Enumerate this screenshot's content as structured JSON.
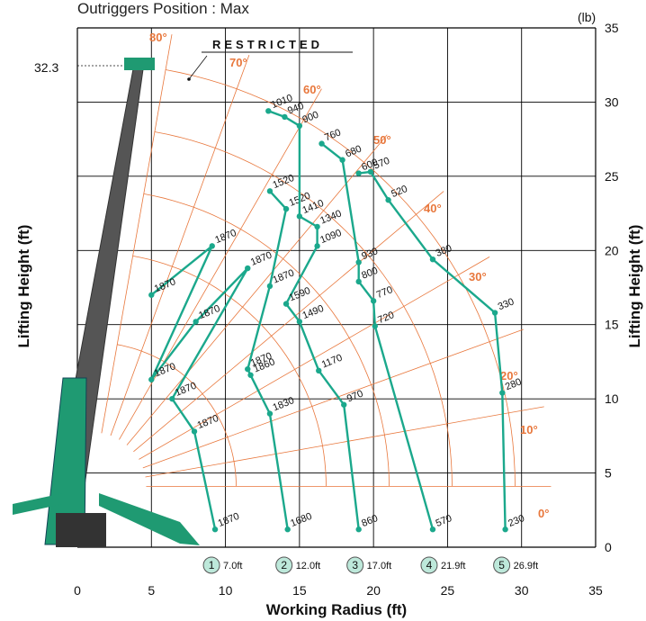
{
  "page_title": "Outriggers Position : Max",
  "restricted_label": "RESTRICTED",
  "max_height_label": "32.3",
  "unit_label": "(lb)",
  "colors": {
    "curve": "#1ba88c",
    "angle": "#e8773c",
    "grid": "#000000",
    "boom": "#555555",
    "machine": "#1f9a72"
  },
  "chart_data": {
    "type": "line",
    "xlabel": "Working Radius (ft)",
    "ylabel": "Lifting Height (ft)",
    "ylabel_right": "Lifting Height (ft)",
    "xlim": [
      0,
      35
    ],
    "ylim": [
      0,
      35
    ],
    "x_ticks": [
      "0",
      "5",
      "10",
      "15",
      "20",
      "25",
      "30",
      "35"
    ],
    "y_ticks": [
      "0",
      "5",
      "10",
      "15",
      "20",
      "25",
      "30",
      "35"
    ],
    "grid": true,
    "angle_labels": [
      "0°",
      "10°",
      "20°",
      "30°",
      "40°",
      "50°",
      "60°",
      "70°",
      "80°"
    ],
    "series": [
      {
        "name": "7.0ft",
        "index": "1",
        "points": [
          {
            "x": 9.3,
            "y": 1.2,
            "load": "1870"
          },
          {
            "x": 7.9,
            "y": 7.8,
            "load": "1870"
          },
          {
            "x": 6.4,
            "y": 10.0,
            "load": "1870"
          },
          {
            "x": 5.0,
            "y": 11.3,
            "load": "1870"
          },
          {
            "x": 5.0,
            "y": 17.0,
            "load": "1870"
          },
          {
            "x": 8.0,
            "y": 15.2,
            "load": "1870"
          },
          {
            "x": 9.1,
            "y": 20.3,
            "load": "1870"
          },
          {
            "x": 11.5,
            "y": 18.8,
            "load": "1870"
          }
        ]
      },
      {
        "name": "12.0ft",
        "index": "2",
        "points": [
          {
            "x": 14.2,
            "y": 1.2,
            "load": "1680"
          },
          {
            "x": 13.0,
            "y": 9.0,
            "load": "1830"
          },
          {
            "x": 11.7,
            "y": 11.6,
            "load": "1860"
          },
          {
            "x": 11.5,
            "y": 12.0,
            "load": "1870"
          },
          {
            "x": 13.0,
            "y": 17.6,
            "load": "1870"
          },
          {
            "x": 14.1,
            "y": 22.8,
            "load": "1520"
          },
          {
            "x": 13.0,
            "y": 24.0,
            "load": "1520"
          }
        ]
      },
      {
        "name": "17.0ft",
        "index": "3",
        "points": [
          {
            "x": 19.0,
            "y": 1.2,
            "load": "860"
          },
          {
            "x": 18.0,
            "y": 9.6,
            "load": "970"
          },
          {
            "x": 16.3,
            "y": 11.9,
            "load": "1170"
          },
          {
            "x": 15.0,
            "y": 15.2,
            "load": "1490"
          },
          {
            "x": 14.1,
            "y": 16.4,
            "load": "1590"
          },
          {
            "x": 15.0,
            "y": 22.3,
            "load": "1410"
          },
          {
            "x": 16.2,
            "y": 21.6,
            "load": "1340"
          },
          {
            "x": 16.2,
            "y": 20.3,
            "load": "1090"
          },
          {
            "x": 15.0,
            "y": 28.4,
            "load": "900"
          },
          {
            "x": 14.0,
            "y": 29.0,
            "load": "940"
          },
          {
            "x": 12.9,
            "y": 29.4,
            "load": "1010"
          }
        ]
      },
      {
        "name": "21.9ft",
        "index": "4",
        "points": [
          {
            "x": 24.0,
            "y": 1.2,
            "load": "570"
          },
          {
            "x": 20.1,
            "y": 14.9,
            "load": "720"
          },
          {
            "x": 20.0,
            "y": 16.6,
            "load": "770"
          },
          {
            "x": 19.0,
            "y": 17.9,
            "load": "800"
          },
          {
            "x": 19.0,
            "y": 19.2,
            "load": "930"
          },
          {
            "x": 16.5,
            "y": 27.2,
            "load": "760"
          },
          {
            "x": 17.9,
            "y": 26.1,
            "load": "680"
          }
        ]
      },
      {
        "name": "26.9ft",
        "index": "5",
        "points": [
          {
            "x": 28.9,
            "y": 1.2,
            "load": "230"
          },
          {
            "x": 28.7,
            "y": 10.4,
            "load": "280"
          },
          {
            "x": 28.2,
            "y": 15.8,
            "load": "330"
          },
          {
            "x": 24.0,
            "y": 19.4,
            "load": "380"
          },
          {
            "x": 21.0,
            "y": 23.4,
            "load": "520"
          },
          {
            "x": 19.8,
            "y": 25.3,
            "load": "570"
          },
          {
            "x": 19.0,
            "y": 25.2,
            "load": "600"
          }
        ]
      }
    ]
  }
}
